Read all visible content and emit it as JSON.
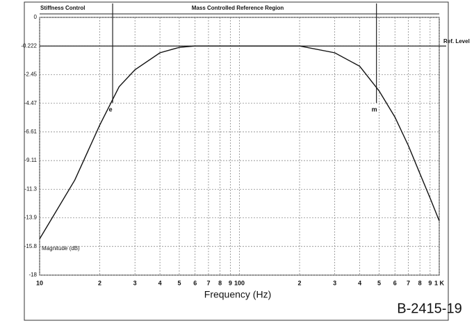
{
  "chart_data": {
    "type": "line",
    "x_label": "Frequency (Hz)",
    "y_label": "Magnitude (dB)",
    "figure_id": "B-2415-19",
    "annotations": {
      "left_region": "Stiffness Control",
      "center_region": "Mass Controlled Reference Region",
      "ref_level": "Ref. Level"
    },
    "markers": [
      {
        "label": "e",
        "x": 23.2
      },
      {
        "label": "m",
        "x": 485
      }
    ],
    "ref_level": -0.222,
    "xscale": "log",
    "xlim": [
      10,
      1000
    ],
    "xticks": [
      10,
      {
        "value": 20,
        "label": "2"
      },
      {
        "value": 30,
        "label": "3"
      },
      {
        "value": 40,
        "label": "4"
      },
      {
        "value": 50,
        "label": "5"
      },
      {
        "value": 60,
        "label": "6"
      },
      {
        "value": 70,
        "label": "7"
      },
      {
        "value": 80,
        "label": "8"
      },
      {
        "value": 90,
        "label": "9"
      },
      100,
      {
        "value": 200,
        "label": "2"
      },
      {
        "value": 300,
        "label": "3"
      },
      {
        "value": 400,
        "label": "4"
      },
      {
        "value": 500,
        "label": "5"
      },
      {
        "value": 600,
        "label": "6"
      },
      {
        "value": 700,
        "label": "7"
      },
      {
        "value": 800,
        "label": "8"
      },
      {
        "value": 900,
        "label": "9"
      },
      {
        "value": 1000,
        "label": "1 K"
      }
    ],
    "ylim": [
      -18,
      0
    ],
    "yticks": [
      0,
      -0.222,
      -2.45,
      -4.47,
      -6.61,
      -9.11,
      -11.3,
      -13.9,
      -15.8,
      -18
    ],
    "grid": true,
    "color": "#111111",
    "x": [
      10,
      15,
      20,
      25,
      30,
      40,
      50,
      60,
      100,
      200,
      300,
      400,
      500,
      600,
      700,
      800,
      900,
      1000
    ],
    "values": [
      -15.3,
      -10.6,
      -6.1,
      -3.3,
      -2.07,
      -0.75,
      -0.33,
      -0.222,
      -0.222,
      -0.222,
      -0.75,
      -1.8,
      -3.6,
      -5.5,
      -7.8,
      -10.1,
      -12.1,
      -14.1
    ]
  }
}
